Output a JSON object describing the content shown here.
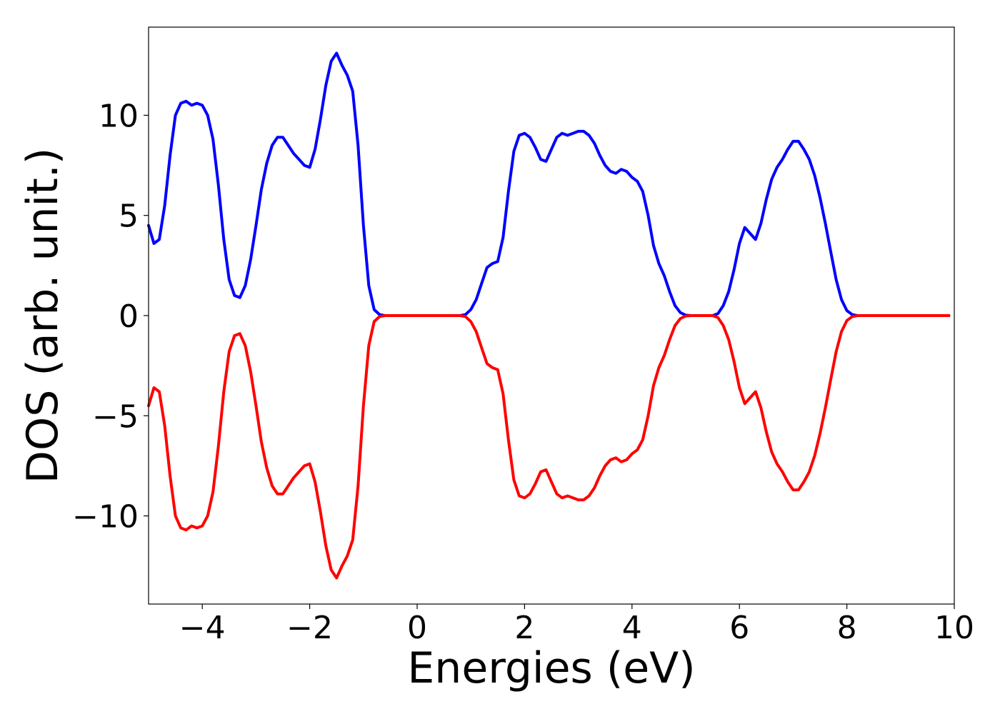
{
  "chart_data": {
    "type": "line",
    "title": "",
    "xlabel": "Energies (eV)",
    "ylabel": "DOS (arb. unit.)",
    "xlim": [
      -5,
      10
    ],
    "ylim": [
      -14.4,
      14.4
    ],
    "xticks": [
      -4,
      -2,
      0,
      2,
      4,
      6,
      8,
      10
    ],
    "xtick_labels": [
      "−4",
      "−2",
      "0",
      "2",
      "4",
      "6",
      "8",
      "10"
    ],
    "yticks": [
      -10,
      -5,
      0,
      5,
      10
    ],
    "ytick_labels": [
      "−10",
      "−5",
      "0",
      "5",
      "10"
    ],
    "grid": false,
    "legend": "none",
    "series": [
      {
        "color": "#0000ff",
        "points": [
          [
            -5.0,
            4.5
          ],
          [
            -4.9,
            3.6
          ],
          [
            -4.8,
            3.8
          ],
          [
            -4.7,
            5.5
          ],
          [
            -4.6,
            8.0
          ],
          [
            -4.5,
            10.0
          ],
          [
            -4.4,
            10.6
          ],
          [
            -4.3,
            10.7
          ],
          [
            -4.2,
            10.5
          ],
          [
            -4.1,
            10.6
          ],
          [
            -4.0,
            10.5
          ],
          [
            -3.9,
            10.0
          ],
          [
            -3.8,
            8.8
          ],
          [
            -3.7,
            6.5
          ],
          [
            -3.6,
            3.8
          ],
          [
            -3.5,
            1.8
          ],
          [
            -3.4,
            1.0
          ],
          [
            -3.3,
            0.9
          ],
          [
            -3.2,
            1.5
          ],
          [
            -3.1,
            2.8
          ],
          [
            -3.0,
            4.5
          ],
          [
            -2.9,
            6.3
          ],
          [
            -2.8,
            7.6
          ],
          [
            -2.7,
            8.5
          ],
          [
            -2.6,
            8.9
          ],
          [
            -2.5,
            8.9
          ],
          [
            -2.4,
            8.5
          ],
          [
            -2.3,
            8.1
          ],
          [
            -2.2,
            7.8
          ],
          [
            -2.1,
            7.5
          ],
          [
            -2.0,
            7.4
          ],
          [
            -1.9,
            8.3
          ],
          [
            -1.8,
            9.8
          ],
          [
            -1.7,
            11.5
          ],
          [
            -1.6,
            12.7
          ],
          [
            -1.5,
            13.1
          ],
          [
            -1.4,
            12.5
          ],
          [
            -1.3,
            12.0
          ],
          [
            -1.2,
            11.2
          ],
          [
            -1.1,
            8.5
          ],
          [
            -1.0,
            4.5
          ],
          [
            -0.9,
            1.5
          ],
          [
            -0.8,
            0.3
          ],
          [
            -0.7,
            0.05
          ],
          [
            -0.6,
            0.0
          ],
          [
            0.8,
            0.0
          ],
          [
            0.9,
            0.05
          ],
          [
            1.0,
            0.3
          ],
          [
            1.1,
            0.8
          ],
          [
            1.2,
            1.6
          ],
          [
            1.3,
            2.4
          ],
          [
            1.4,
            2.6
          ],
          [
            1.5,
            2.7
          ],
          [
            1.6,
            3.9
          ],
          [
            1.7,
            6.2
          ],
          [
            1.8,
            8.2
          ],
          [
            1.9,
            9.0
          ],
          [
            2.0,
            9.1
          ],
          [
            2.1,
            8.9
          ],
          [
            2.2,
            8.4
          ],
          [
            2.3,
            7.8
          ],
          [
            2.4,
            7.7
          ],
          [
            2.5,
            8.3
          ],
          [
            2.6,
            8.9
          ],
          [
            2.7,
            9.1
          ],
          [
            2.8,
            9.0
          ],
          [
            2.9,
            9.1
          ],
          [
            3.0,
            9.2
          ],
          [
            3.1,
            9.2
          ],
          [
            3.2,
            9.0
          ],
          [
            3.3,
            8.6
          ],
          [
            3.4,
            8.0
          ],
          [
            3.5,
            7.5
          ],
          [
            3.6,
            7.2
          ],
          [
            3.7,
            7.1
          ],
          [
            3.8,
            7.3
          ],
          [
            3.9,
            7.2
          ],
          [
            4.0,
            6.9
          ],
          [
            4.1,
            6.7
          ],
          [
            4.2,
            6.2
          ],
          [
            4.3,
            5.0
          ],
          [
            4.4,
            3.5
          ],
          [
            4.5,
            2.6
          ],
          [
            4.6,
            2.0
          ],
          [
            4.7,
            1.2
          ],
          [
            4.8,
            0.5
          ],
          [
            4.9,
            0.15
          ],
          [
            5.0,
            0.02
          ],
          [
            5.1,
            0.0
          ],
          [
            5.5,
            0.0
          ],
          [
            5.6,
            0.1
          ],
          [
            5.7,
            0.5
          ],
          [
            5.8,
            1.2
          ],
          [
            5.9,
            2.3
          ],
          [
            6.0,
            3.6
          ],
          [
            6.1,
            4.4
          ],
          [
            6.2,
            4.1
          ],
          [
            6.3,
            3.8
          ],
          [
            6.4,
            4.6
          ],
          [
            6.5,
            5.8
          ],
          [
            6.6,
            6.8
          ],
          [
            6.7,
            7.4
          ],
          [
            6.8,
            7.8
          ],
          [
            6.9,
            8.3
          ],
          [
            7.0,
            8.7
          ],
          [
            7.1,
            8.7
          ],
          [
            7.2,
            8.3
          ],
          [
            7.3,
            7.8
          ],
          [
            7.4,
            7.0
          ],
          [
            7.5,
            5.9
          ],
          [
            7.6,
            4.6
          ],
          [
            7.7,
            3.2
          ],
          [
            7.8,
            1.8
          ],
          [
            7.9,
            0.8
          ],
          [
            8.0,
            0.25
          ],
          [
            8.1,
            0.05
          ],
          [
            8.2,
            0.0
          ],
          [
            9.9,
            0.0
          ]
        ]
      },
      {
        "color": "#ff0000",
        "points": [
          [
            -5.0,
            -4.5
          ],
          [
            -4.9,
            -3.6
          ],
          [
            -4.8,
            -3.8
          ],
          [
            -4.7,
            -5.5
          ],
          [
            -4.6,
            -8.0
          ],
          [
            -4.5,
            -10.0
          ],
          [
            -4.4,
            -10.6
          ],
          [
            -4.3,
            -10.7
          ],
          [
            -4.2,
            -10.5
          ],
          [
            -4.1,
            -10.6
          ],
          [
            -4.0,
            -10.5
          ],
          [
            -3.9,
            -10.0
          ],
          [
            -3.8,
            -8.8
          ],
          [
            -3.7,
            -6.5
          ],
          [
            -3.6,
            -3.8
          ],
          [
            -3.5,
            -1.8
          ],
          [
            -3.4,
            -1.0
          ],
          [
            -3.3,
            -0.9
          ],
          [
            -3.2,
            -1.5
          ],
          [
            -3.1,
            -2.8
          ],
          [
            -3.0,
            -4.5
          ],
          [
            -2.9,
            -6.3
          ],
          [
            -2.8,
            -7.6
          ],
          [
            -2.7,
            -8.5
          ],
          [
            -2.6,
            -8.9
          ],
          [
            -2.5,
            -8.9
          ],
          [
            -2.4,
            -8.5
          ],
          [
            -2.3,
            -8.1
          ],
          [
            -2.2,
            -7.8
          ],
          [
            -2.1,
            -7.5
          ],
          [
            -2.0,
            -7.4
          ],
          [
            -1.9,
            -8.3
          ],
          [
            -1.8,
            -9.8
          ],
          [
            -1.7,
            -11.5
          ],
          [
            -1.6,
            -12.7
          ],
          [
            -1.5,
            -13.1
          ],
          [
            -1.4,
            -12.5
          ],
          [
            -1.3,
            -12.0
          ],
          [
            -1.2,
            -11.2
          ],
          [
            -1.1,
            -8.5
          ],
          [
            -1.0,
            -4.5
          ],
          [
            -0.9,
            -1.5
          ],
          [
            -0.8,
            -0.3
          ],
          [
            -0.7,
            -0.05
          ],
          [
            -0.6,
            0.0
          ],
          [
            0.8,
            0.0
          ],
          [
            0.9,
            -0.05
          ],
          [
            1.0,
            -0.3
          ],
          [
            1.1,
            -0.8
          ],
          [
            1.2,
            -1.6
          ],
          [
            1.3,
            -2.4
          ],
          [
            1.4,
            -2.6
          ],
          [
            1.5,
            -2.7
          ],
          [
            1.6,
            -3.9
          ],
          [
            1.7,
            -6.2
          ],
          [
            1.8,
            -8.2
          ],
          [
            1.9,
            -9.0
          ],
          [
            2.0,
            -9.1
          ],
          [
            2.1,
            -8.9
          ],
          [
            2.2,
            -8.4
          ],
          [
            2.3,
            -7.8
          ],
          [
            2.4,
            -7.7
          ],
          [
            2.5,
            -8.3
          ],
          [
            2.6,
            -8.9
          ],
          [
            2.7,
            -9.1
          ],
          [
            2.8,
            -9.0
          ],
          [
            2.9,
            -9.1
          ],
          [
            3.0,
            -9.2
          ],
          [
            3.1,
            -9.2
          ],
          [
            3.2,
            -9.0
          ],
          [
            3.3,
            -8.6
          ],
          [
            3.4,
            -8.0
          ],
          [
            3.5,
            -7.5
          ],
          [
            3.6,
            -7.2
          ],
          [
            3.7,
            -7.1
          ],
          [
            3.8,
            -7.3
          ],
          [
            3.9,
            -7.2
          ],
          [
            4.0,
            -6.9
          ],
          [
            4.1,
            -6.7
          ],
          [
            4.2,
            -6.2
          ],
          [
            4.3,
            -5.0
          ],
          [
            4.4,
            -3.5
          ],
          [
            4.5,
            -2.6
          ],
          [
            4.6,
            -2.0
          ],
          [
            4.7,
            -1.2
          ],
          [
            4.8,
            -0.5
          ],
          [
            4.9,
            -0.15
          ],
          [
            5.0,
            -0.02
          ],
          [
            5.1,
            0.0
          ],
          [
            5.5,
            0.0
          ],
          [
            5.6,
            -0.1
          ],
          [
            5.7,
            -0.5
          ],
          [
            5.8,
            -1.2
          ],
          [
            5.9,
            -2.3
          ],
          [
            6.0,
            -3.6
          ],
          [
            6.1,
            -4.4
          ],
          [
            6.2,
            -4.1
          ],
          [
            6.3,
            -3.8
          ],
          [
            6.4,
            -4.6
          ],
          [
            6.5,
            -5.8
          ],
          [
            6.6,
            -6.8
          ],
          [
            6.7,
            -7.4
          ],
          [
            6.8,
            -7.8
          ],
          [
            6.9,
            -8.3
          ],
          [
            7.0,
            -8.7
          ],
          [
            7.1,
            -8.7
          ],
          [
            7.2,
            -8.3
          ],
          [
            7.3,
            -7.8
          ],
          [
            7.4,
            -7.0
          ],
          [
            7.5,
            -5.9
          ],
          [
            7.6,
            -4.6
          ],
          [
            7.7,
            -3.2
          ],
          [
            7.8,
            -1.8
          ],
          [
            7.9,
            -0.8
          ],
          [
            8.0,
            -0.25
          ],
          [
            8.1,
            -0.05
          ],
          [
            8.2,
            0.0
          ],
          [
            9.9,
            0.0
          ]
        ]
      }
    ]
  }
}
